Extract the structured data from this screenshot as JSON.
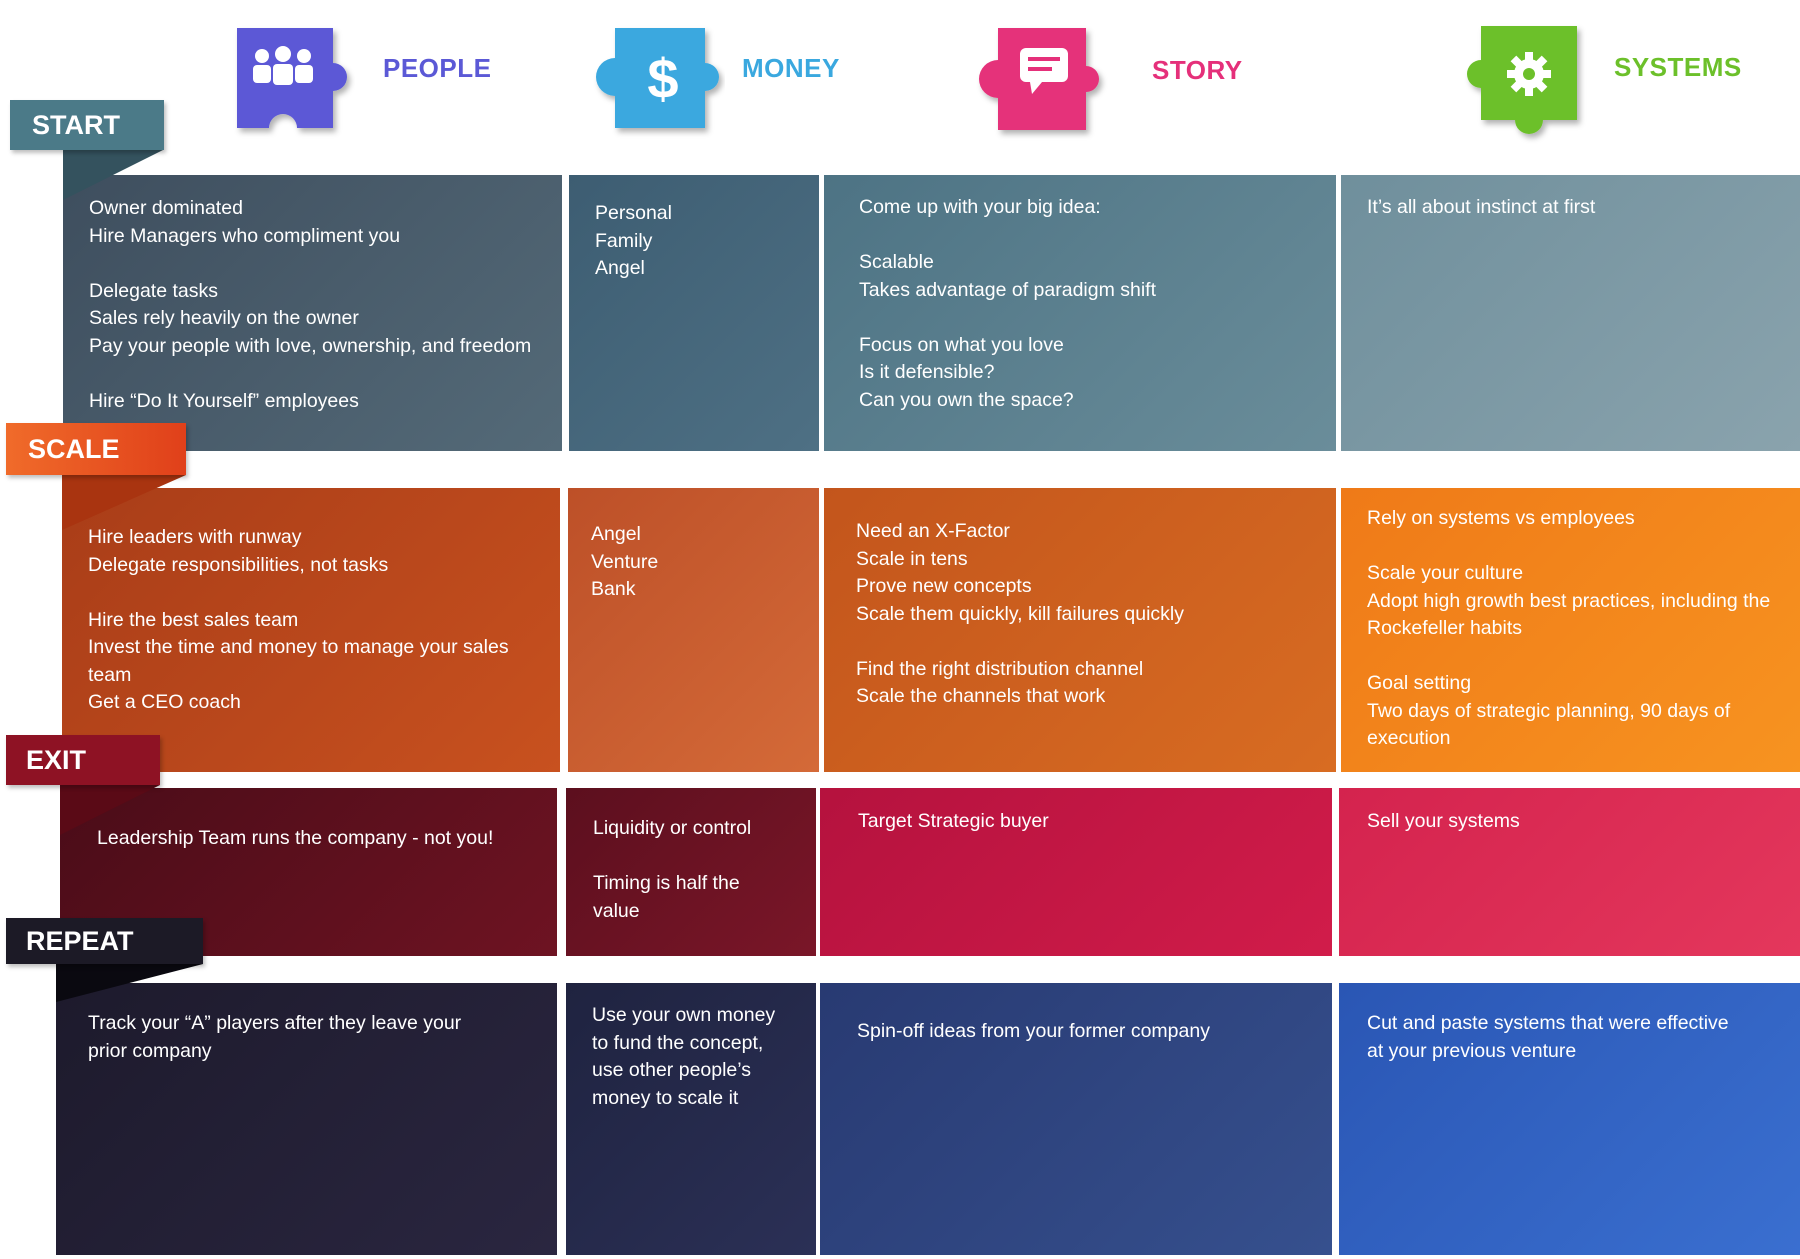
{
  "columns": [
    {
      "id": "people",
      "title": "PEOPLE",
      "color": "#5b59d6",
      "icon": "people-icon"
    },
    {
      "id": "money",
      "title": "MONEY",
      "color": "#3aa8df",
      "icon": "dollar-icon"
    },
    {
      "id": "story",
      "title": "STORY",
      "color": "#e5307a",
      "icon": "speech-bubble-icon"
    },
    {
      "id": "systems",
      "title": "SYSTEMS",
      "color": "#6cc02a",
      "icon": "gear-icon"
    }
  ],
  "stages": [
    {
      "id": "start",
      "label": "START",
      "label_color": "#4b7a88",
      "cells": [
        [
          "Owner dominated",
          "Hire Managers who compliment you",
          "",
          "Delegate tasks",
          "Sales rely heavily on the owner",
          "Pay your people with love, ownership, and freedom",
          "",
          "Hire “Do It Yourself” employees"
        ],
        [
          "Personal",
          "Family",
          "Angel"
        ],
        [
          "Come up with your big idea:",
          "",
          "Scalable",
          "Takes advantage of paradigm shift",
          "",
          "Focus on what you love",
          "Is it defensible?",
          "Can you own the space?"
        ],
        [
          "It’s all about instinct at first"
        ]
      ]
    },
    {
      "id": "scale",
      "label": "SCALE",
      "label_color": "#ec5a1e",
      "cells": [
        [
          "Hire leaders with runway",
          "Delegate responsibilities, not tasks",
          "",
          "Hire the best sales team",
          "Invest the time and money to manage your sales",
          "team",
          "Get a CEO coach"
        ],
        [
          "Angel",
          "Venture",
          "Bank"
        ],
        [
          "Need an X-Factor",
          "Scale in tens",
          "Prove new concepts",
          "Scale them quickly, kill failures quickly",
          "",
          "Find the right distribution channel",
          "Scale the channels that work"
        ],
        [
          "Rely on systems vs employees",
          "",
          "Scale your culture",
          "Adopt high growth best practices, including the",
          "Rockefeller habits",
          "",
          "Goal setting",
          "Two days of strategic planning, 90 days of",
          "execution"
        ]
      ]
    },
    {
      "id": "exit",
      "label": "EXIT",
      "label_color": "#8e1224",
      "cells": [
        [
          "Leadership Team runs the company - not you!"
        ],
        [
          "Liquidity or control",
          "",
          "Timing is half the value"
        ],
        [
          "Target Strategic buyer"
        ],
        [
          "Sell your systems"
        ]
      ]
    },
    {
      "id": "repeat",
      "label": "REPEAT",
      "label_color": "#1c1a26",
      "cells": [
        [
          "Track your “A” players after they leave your",
          "prior company"
        ],
        [
          "Use your own money",
          "to fund the concept,",
          "use other people’s",
          "money to scale it"
        ],
        [
          "Spin-off ideas from your former company"
        ],
        [
          "Cut and paste systems that were effective",
          "at your previous venture"
        ]
      ]
    }
  ]
}
